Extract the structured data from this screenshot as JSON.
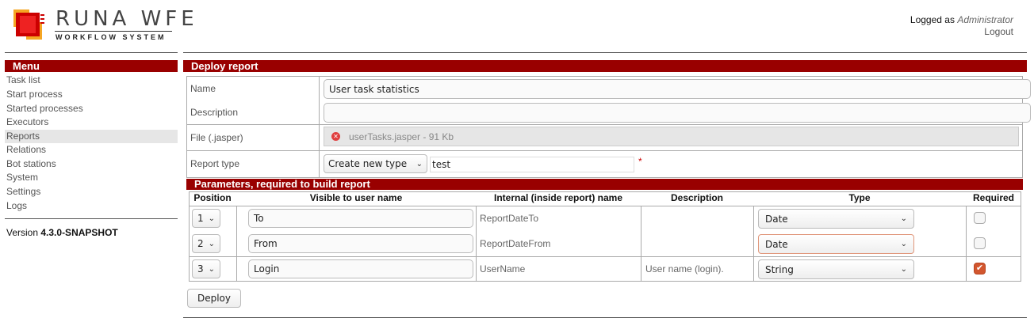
{
  "header": {
    "logo_title": "RUNA WFE",
    "logo_subtitle": "WORKFLOW SYSTEM",
    "logged_as": "Logged as",
    "user": "Administrator",
    "logout": "Logout"
  },
  "menu": {
    "title": "Menu",
    "items": [
      {
        "label": "Task list"
      },
      {
        "label": "Start process"
      },
      {
        "label": "Started processes"
      },
      {
        "label": "Executors"
      },
      {
        "label": "Reports",
        "active": true
      },
      {
        "label": "Relations"
      },
      {
        "label": "Bot stations"
      },
      {
        "label": "System"
      },
      {
        "label": "Settings"
      },
      {
        "label": "Logs"
      }
    ],
    "version_label": "Version",
    "version": "4.3.0-SNAPSHOT"
  },
  "form": {
    "title": "Deploy report",
    "name_label": "Name",
    "name_value": "User task statistics",
    "description_label": "Description",
    "description_value": "",
    "file_label": "File (.jasper)",
    "file_name": "userTasks.jasper",
    "file_size": "- 91 Kb",
    "type_label": "Report type",
    "type_select": "Create new type",
    "type_value": "test",
    "required_mark": "*"
  },
  "params": {
    "title": "Parameters, required to build report",
    "columns": [
      "Position",
      "Visible to user name",
      "Internal (inside report) name",
      "Description",
      "Type",
      "Required"
    ],
    "rows": [
      {
        "position": "1",
        "visible": "To",
        "internal": "ReportDateTo",
        "description": "",
        "type": "Date",
        "required": false
      },
      {
        "position": "2",
        "visible": "From",
        "internal": "ReportDateFrom",
        "description": "",
        "type": "Date",
        "required": false
      },
      {
        "position": "3",
        "visible": "Login",
        "internal": "UserName",
        "description": "User name (login).",
        "type": "String",
        "required": true
      }
    ]
  },
  "deploy_button": "Deploy",
  "colors": {
    "accent": "#990000",
    "checkbox": "#d2562e"
  }
}
